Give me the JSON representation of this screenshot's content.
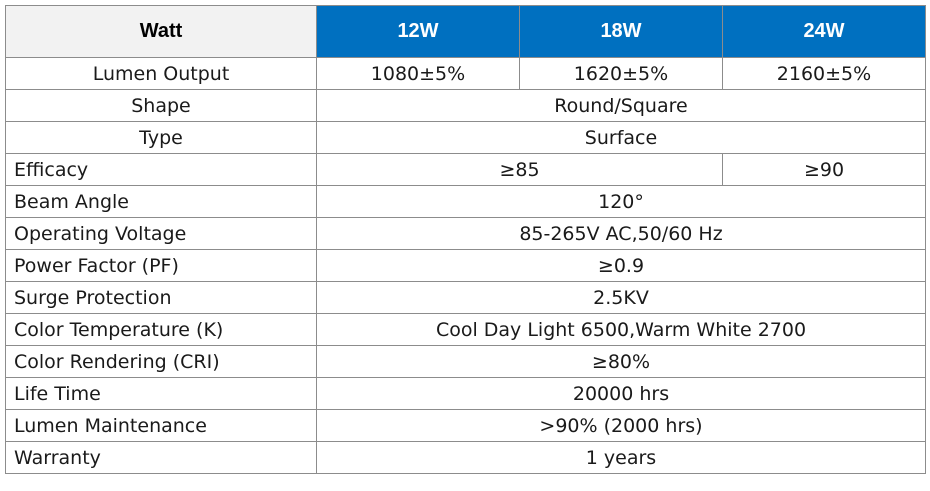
{
  "colors": {
    "header_blue": "#0070c0",
    "header_corner": "#f2f2f2",
    "border": "#8c8c8c"
  },
  "header": {
    "corner_label": "Watt",
    "watt_12": "12W",
    "watt_18": "18W",
    "watt_24": "24W"
  },
  "rows": {
    "lumen_output": {
      "label": "Lumen Output",
      "w12": "1080±5%",
      "w18": "1620±5%",
      "w24": "2160±5%"
    },
    "shape": {
      "label": "Shape",
      "value": "Round/Square"
    },
    "type": {
      "label": "Type",
      "value": "Surface"
    },
    "efficacy": {
      "label": "Efficacy",
      "w12_w18": "≥85",
      "w24": "≥90"
    },
    "beam_angle": {
      "label": "Beam Angle",
      "value": "120°"
    },
    "operating_voltage": {
      "label": "Operating Voltage",
      "value": "85-265V AC,50/60 Hz"
    },
    "power_factor": {
      "label": "Power Factor (PF)",
      "value": "≥0.9"
    },
    "surge_protection": {
      "label": "Surge Protection",
      "value": "2.5KV"
    },
    "color_temperature": {
      "label": "Color Temperature (K)",
      "value": "Cool Day Light 6500,Warm White 2700"
    },
    "color_rendering": {
      "label": "Color Rendering (CRI)",
      "value": "≥80%"
    },
    "life_time": {
      "label": "Life Time",
      "value": "20000 hrs"
    },
    "lumen_maintenance": {
      "label": "Lumen Maintenance",
      "value": ">90% (2000 hrs)"
    },
    "warranty": {
      "label": "Warranty",
      "value": "1 years"
    }
  }
}
